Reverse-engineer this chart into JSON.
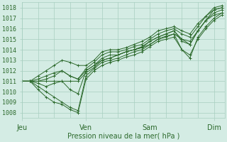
{
  "background_color": "#d4ece4",
  "grid_color": "#a8cfc0",
  "line_color": "#2d6a2d",
  "marker_color": "#2d6a2d",
  "ylabel_ticks": [
    1008,
    1009,
    1010,
    1011,
    1012,
    1013,
    1014,
    1015,
    1016,
    1017,
    1018
  ],
  "ylim": [
    1007.5,
    1018.5
  ],
  "xlabel": "Pression niveau de la mer( hPa )",
  "xtick_labels": [
    "Jeu",
    "Ven",
    "Sam",
    "Dim"
  ],
  "xtick_positions": [
    0,
    24,
    48,
    72
  ],
  "xlim": [
    0,
    76
  ],
  "vline_positions": [
    0,
    6,
    12,
    18,
    24,
    30,
    36,
    42,
    48,
    54,
    60,
    66,
    72
  ],
  "series": [
    [
      0,
      1011.0,
      3,
      1011.0,
      6,
      1010.5,
      9,
      1010.0,
      12,
      1009.5,
      15,
      1009.0,
      18,
      1008.5,
      21,
      1008.2,
      24,
      1011.5,
      27,
      1012.2,
      30,
      1012.8,
      33,
      1013.0,
      36,
      1013.2,
      39,
      1013.5,
      42,
      1013.8,
      45,
      1014.0,
      48,
      1014.5,
      51,
      1015.0,
      54,
      1015.2,
      57,
      1015.5,
      60,
      1014.0,
      63,
      1013.2,
      66,
      1015.2,
      69,
      1016.2,
      72,
      1017.0,
      75,
      1017.5
    ],
    [
      0,
      1011.0,
      3,
      1011.0,
      6,
      1010.2,
      9,
      1009.5,
      12,
      1009.0,
      15,
      1008.8,
      18,
      1008.3,
      21,
      1008.0,
      24,
      1011.2,
      27,
      1012.0,
      30,
      1012.5,
      33,
      1012.8,
      36,
      1013.0,
      39,
      1013.3,
      42,
      1013.5,
      45,
      1013.8,
      48,
      1014.3,
      51,
      1014.8,
      54,
      1015.0,
      57,
      1015.2,
      60,
      1014.0,
      63,
      1013.5,
      66,
      1015.0,
      69,
      1016.0,
      72,
      1016.8,
      75,
      1017.3
    ],
    [
      0,
      1011.0,
      3,
      1011.0,
      6,
      1010.8,
      9,
      1010.5,
      12,
      1010.8,
      15,
      1011.0,
      18,
      1010.2,
      21,
      1009.8,
      24,
      1012.0,
      27,
      1012.5,
      30,
      1013.2,
      33,
      1013.5,
      36,
      1013.5,
      39,
      1013.8,
      42,
      1014.0,
      45,
      1014.3,
      48,
      1014.8,
      51,
      1015.2,
      54,
      1015.5,
      57,
      1015.8,
      60,
      1015.0,
      63,
      1014.5,
      66,
      1015.8,
      69,
      1016.8,
      72,
      1017.8,
      75,
      1018.0
    ],
    [
      0,
      1011.0,
      3,
      1011.0,
      6,
      1011.0,
      9,
      1011.0,
      12,
      1011.0,
      15,
      1011.0,
      18,
      1011.0,
      21,
      1011.0,
      24,
      1011.8,
      27,
      1012.3,
      30,
      1013.0,
      33,
      1013.2,
      36,
      1013.5,
      39,
      1013.8,
      42,
      1014.0,
      45,
      1014.2,
      48,
      1014.5,
      51,
      1015.0,
      54,
      1015.3,
      57,
      1015.5,
      60,
      1015.0,
      63,
      1014.8,
      66,
      1015.8,
      69,
      1016.8,
      72,
      1017.3,
      75,
      1017.5
    ],
    [
      0,
      1011.0,
      3,
      1011.0,
      6,
      1011.2,
      9,
      1011.5,
      12,
      1011.8,
      15,
      1012.0,
      18,
      1011.5,
      21,
      1011.2,
      24,
      1012.2,
      27,
      1012.8,
      30,
      1013.5,
      33,
      1013.8,
      36,
      1013.8,
      39,
      1014.0,
      42,
      1014.3,
      45,
      1014.5,
      48,
      1015.0,
      51,
      1015.5,
      54,
      1015.8,
      57,
      1016.0,
      60,
      1015.5,
      63,
      1015.2,
      66,
      1016.2,
      69,
      1017.2,
      72,
      1018.0,
      75,
      1018.2
    ],
    [
      0,
      1011.0,
      3,
      1011.0,
      6,
      1011.5,
      9,
      1012.0,
      12,
      1012.5,
      15,
      1013.0,
      18,
      1012.8,
      21,
      1012.5,
      24,
      1012.5,
      27,
      1013.0,
      30,
      1013.8,
      33,
      1014.0,
      36,
      1014.0,
      39,
      1014.2,
      42,
      1014.5,
      45,
      1014.8,
      48,
      1015.2,
      51,
      1015.8,
      54,
      1016.0,
      57,
      1016.2,
      60,
      1015.8,
      63,
      1015.5,
      66,
      1016.5,
      69,
      1017.2,
      72,
      1017.8,
      75,
      1018.0
    ],
    [
      0,
      1011.0,
      3,
      1011.0,
      6,
      1011.0,
      9,
      1011.2,
      12,
      1011.5,
      15,
      1012.0,
      18,
      1011.5,
      21,
      1011.2,
      24,
      1012.0,
      27,
      1012.5,
      30,
      1013.0,
      33,
      1013.2,
      36,
      1013.5,
      39,
      1013.8,
      42,
      1014.0,
      45,
      1014.2,
      48,
      1014.8,
      51,
      1015.2,
      54,
      1015.5,
      57,
      1015.8,
      60,
      1014.8,
      63,
      1014.5,
      66,
      1015.8,
      69,
      1016.8,
      72,
      1017.5,
      75,
      1017.8
    ]
  ]
}
